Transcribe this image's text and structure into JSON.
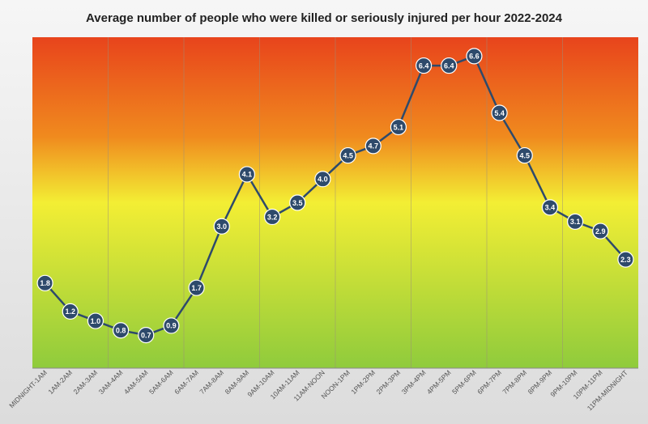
{
  "chart_data": {
    "type": "line",
    "title": "Average number of people who were killed or seriously injured per hour 2022-2024",
    "xlabel": "",
    "ylabel": "",
    "categories": [
      "MIDNIGHT-1AM",
      "1AM-2AM",
      "2AM-3AM",
      "3AM-4AM",
      "4AM-5AM",
      "5AM-6AM",
      "6AM-7AM",
      "7AM-8AM",
      "8AM-9AM",
      "9AM-10AM",
      "10AM-11AM",
      "11AM-NOON",
      "NOON-1PM",
      "1PM-2PM",
      "2PM-3PM",
      "3PM-4PM",
      "4PM-5PM",
      "5PM-6PM",
      "6PM-7PM",
      "7PM-8PM",
      "8PM-9PM",
      "9PM-10PM",
      "10PM-11PM",
      "11PM-MIDNIGHT"
    ],
    "series": [
      {
        "values": [
          1.8,
          1.2,
          1.0,
          0.8,
          0.7,
          0.9,
          1.7,
          3.0,
          4.1,
          3.2,
          3.5,
          4.0,
          4.5,
          4.7,
          5.1,
          6.4,
          6.4,
          6.6,
          5.4,
          4.5,
          3.4,
          3.1,
          2.9,
          2.3
        ]
      }
    ],
    "ylim": [
      0,
      7
    ],
    "grid": "vertical",
    "legend": "none",
    "colors": {
      "line": "#2e4a6b",
      "marker": "#2e4a6b",
      "marker_stroke": "#ffffff",
      "label_text": "#ffffff",
      "gradient_top": "#e8441c",
      "gradient_upper": "#f08a1e",
      "gradient_mid": "#f3ee34",
      "gradient_bottom": "#8fcb3c",
      "grid": "#9c8f7a",
      "tick_text": "#555555",
      "title_text": "#222222"
    }
  }
}
